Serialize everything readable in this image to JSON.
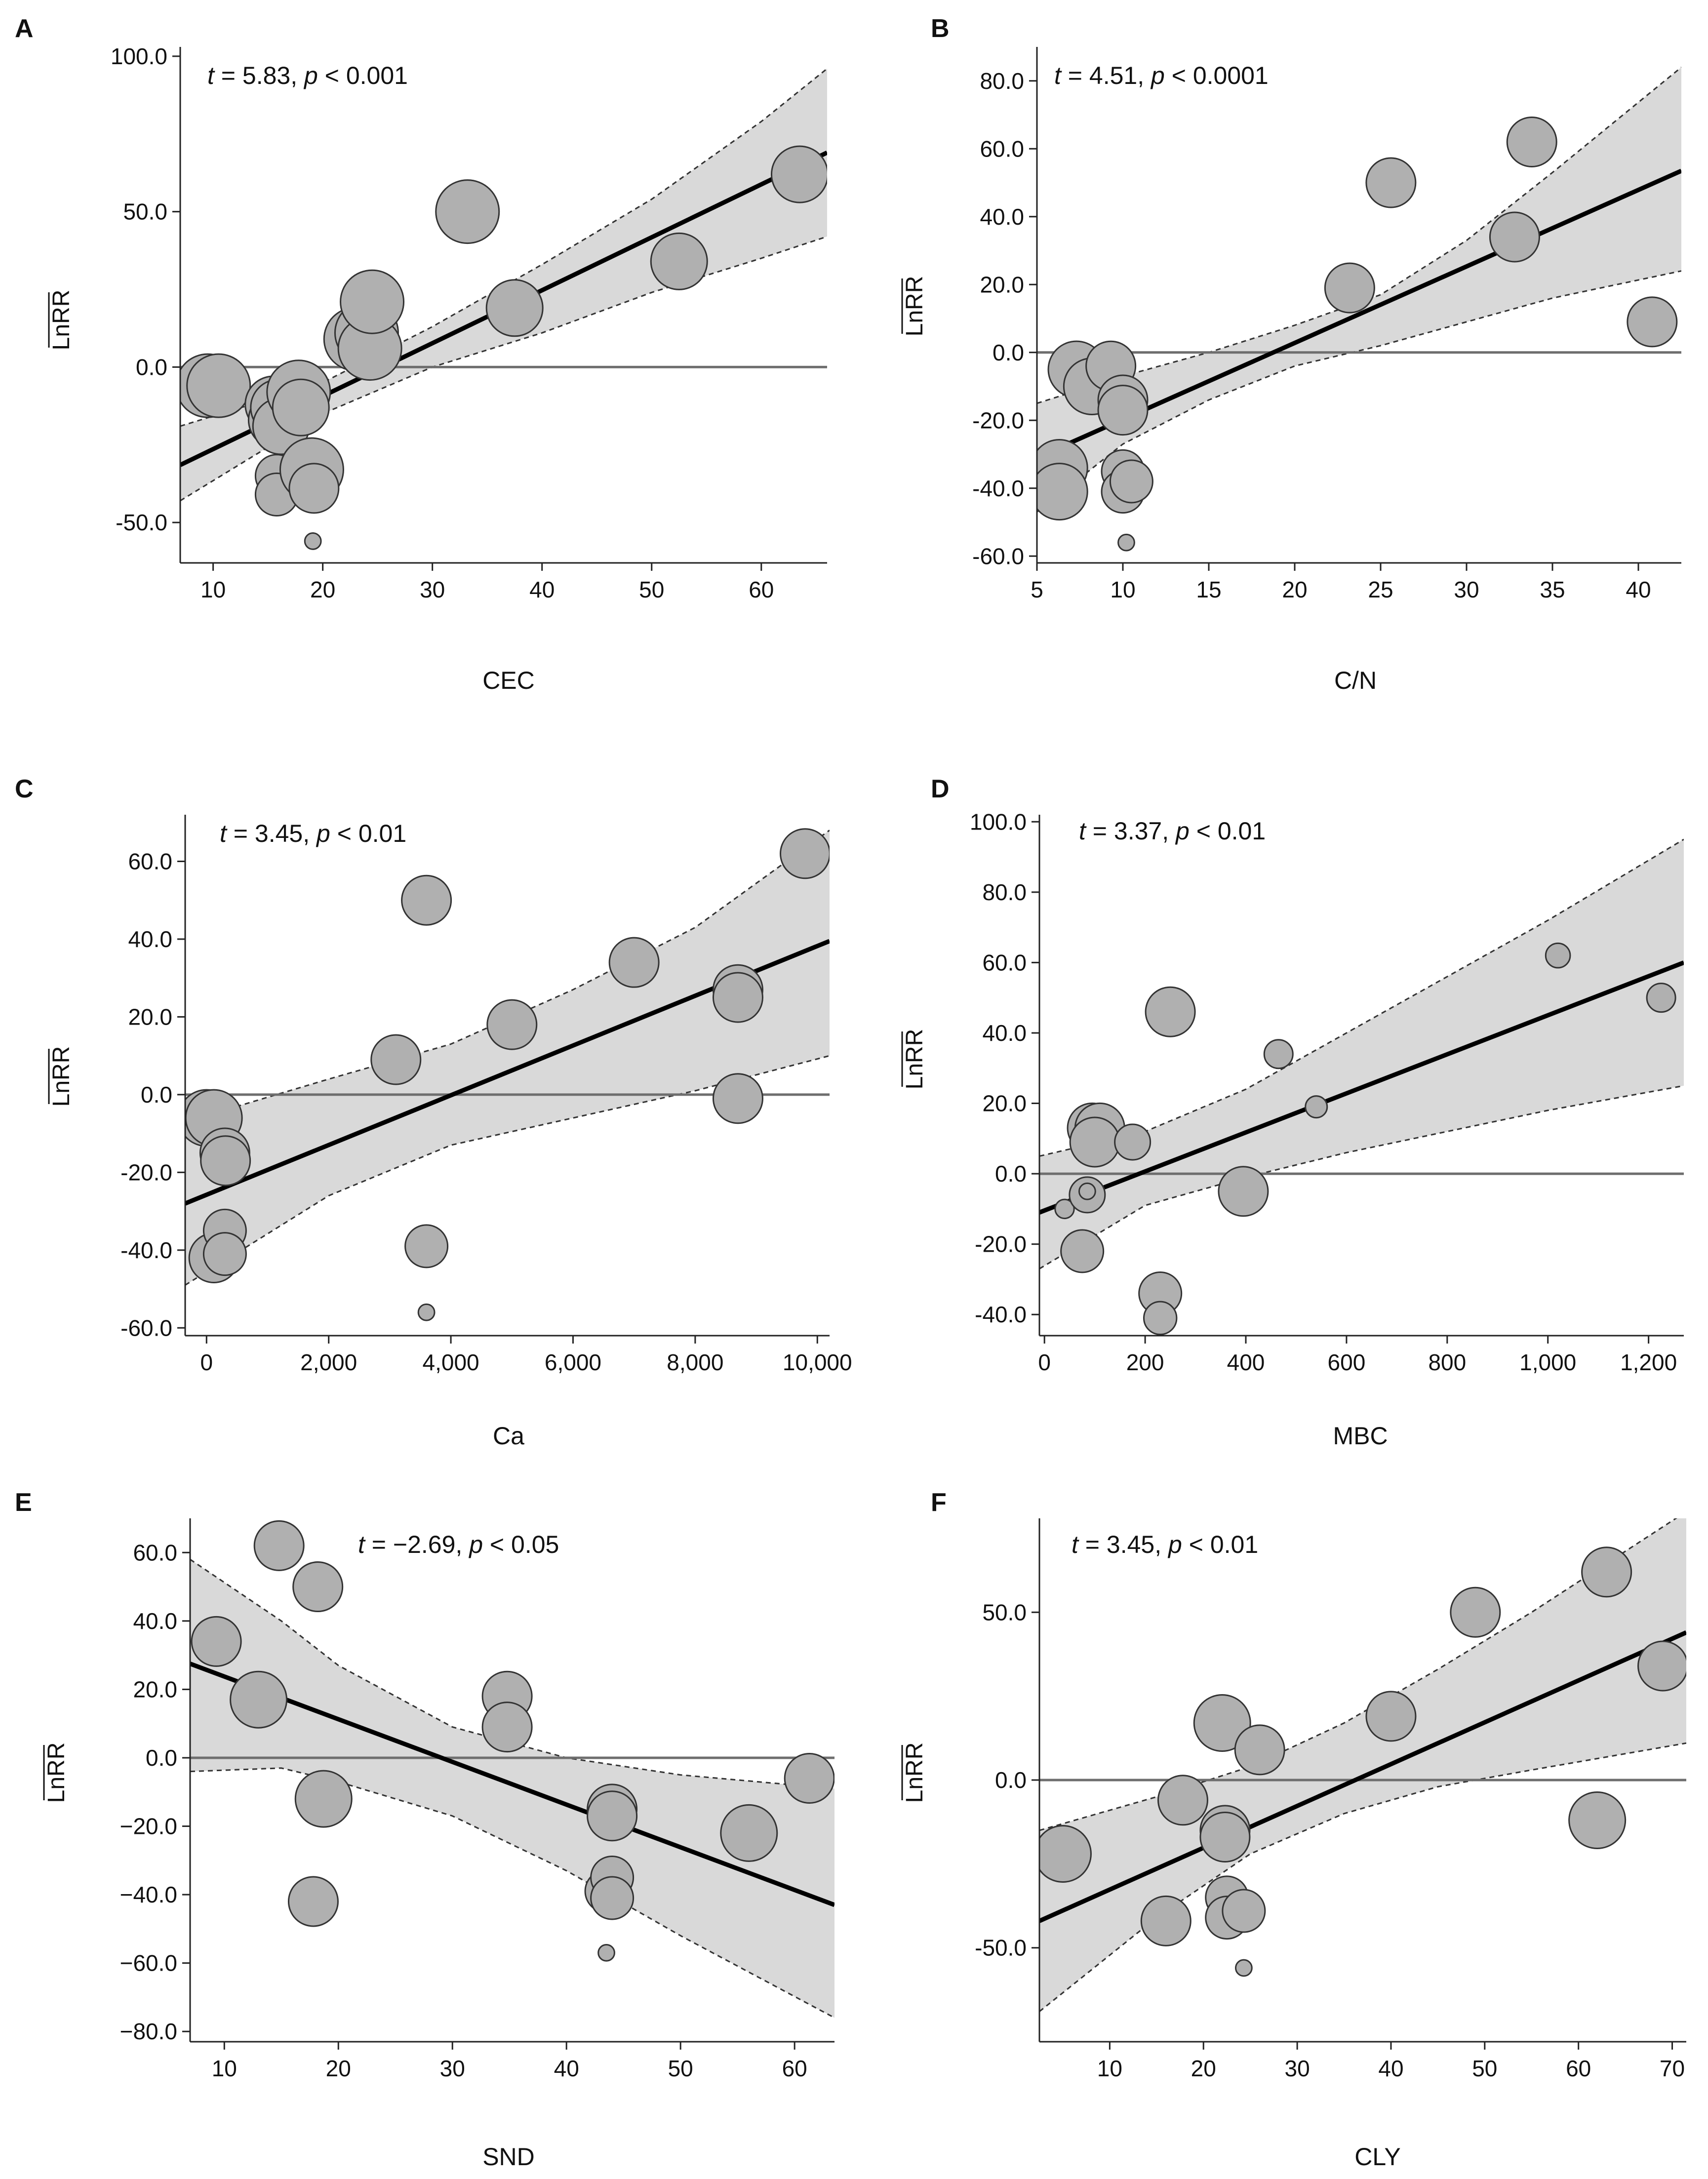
{
  "figure_title": "",
  "y_axis_label": "LnRR",
  "chart_data": [
    {
      "panel": "A",
      "type": "scatter",
      "stat": {
        "t_value": "5.83",
        "p_value": "0.001"
      },
      "xlabel": "CEC",
      "ylabel": "LnRR",
      "xlim": [
        7,
        66
      ],
      "ylim": [
        -63,
        103
      ],
      "x_ticks": [
        10,
        20,
        30,
        40,
        50,
        60
      ],
      "x_tick_labels": [
        "10",
        "20",
        "30",
        "40",
        "50",
        "60"
      ],
      "y_ticks": [
        -50,
        0,
        50,
        100
      ],
      "y_tick_labels": [
        "-50.0",
        "0.0",
        "50.0",
        "100.0"
      ],
      "fit": {
        "x": [
          7,
          66
        ],
        "y": [
          -31.5,
          69
        ]
      },
      "ci_upper": [
        [
          7,
          -19
        ],
        [
          20,
          -5
        ],
        [
          30,
          13
        ],
        [
          40,
          33
        ],
        [
          50,
          54
        ],
        [
          60,
          79
        ],
        [
          66,
          96
        ]
      ],
      "ci_lower": [
        [
          7,
          -43
        ],
        [
          20,
          -15
        ],
        [
          30,
          0
        ],
        [
          40,
          11
        ],
        [
          50,
          24
        ],
        [
          60,
          35
        ],
        [
          66,
          42
        ]
      ],
      "points": [
        {
          "x": 9.5,
          "y": -6,
          "size": 4
        },
        {
          "x": 10.5,
          "y": -6,
          "size": 4
        },
        {
          "x": 15.5,
          "y": -12,
          "size": 3.5
        },
        {
          "x": 15.8,
          "y": -17,
          "size": 3.5
        },
        {
          "x": 16,
          "y": -13,
          "size": 3.5
        },
        {
          "x": 16.2,
          "y": -19,
          "size": 3.5
        },
        {
          "x": 17.8,
          "y": -8,
          "size": 4
        },
        {
          "x": 18,
          "y": -13,
          "size": 3.5
        },
        {
          "x": 15.8,
          "y": -35,
          "size": 2.5
        },
        {
          "x": 15.8,
          "y": -41,
          "size": 2.5
        },
        {
          "x": 19,
          "y": -33,
          "size": 4
        },
        {
          "x": 19.2,
          "y": -39,
          "size": 3
        },
        {
          "x": 19.1,
          "y": -56,
          "size": 0.6
        },
        {
          "x": 23,
          "y": 9,
          "size": 4
        },
        {
          "x": 24,
          "y": 11,
          "size": 4
        },
        {
          "x": 24.3,
          "y": 6,
          "size": 4
        },
        {
          "x": 24.5,
          "y": 21,
          "size": 4
        },
        {
          "x": 33.2,
          "y": 50,
          "size": 4
        },
        {
          "x": 37.5,
          "y": 19,
          "size": 3.5
        },
        {
          "x": 52.5,
          "y": 34,
          "size": 3.5
        },
        {
          "x": 63.5,
          "y": 62,
          "size": 3.5
        }
      ]
    },
    {
      "panel": "B",
      "type": "scatter",
      "stat": {
        "t_value": "4.51",
        "p_value": "0.0001"
      },
      "xlabel": "C/N",
      "ylabel": "LnRR",
      "xlim": [
        5,
        42.5
      ],
      "ylim": [
        -62,
        90
      ],
      "x_ticks": [
        5,
        10,
        15,
        20,
        25,
        30,
        35,
        40
      ],
      "x_tick_labels": [
        "5",
        "10",
        "15",
        "20",
        "25",
        "30",
        "35",
        "40"
      ],
      "y_ticks": [
        -60,
        -40,
        -20,
        0,
        20,
        40,
        60,
        80
      ],
      "y_tick_labels": [
        "-60.0",
        "-40.0",
        "-20.0",
        "0.0",
        "20.0",
        "40.0",
        "60.0",
        "80.0"
      ],
      "fit": {
        "x": [
          5,
          42.5
        ],
        "y": [
          -31,
          53.5
        ]
      },
      "ci_upper": [
        [
          5,
          -15
        ],
        [
          10,
          -7
        ],
        [
          15,
          0
        ],
        [
          20,
          8
        ],
        [
          25,
          17
        ],
        [
          30,
          33
        ],
        [
          35,
          53
        ],
        [
          42.5,
          84
        ]
      ],
      "ci_lower": [
        [
          5,
          -47
        ],
        [
          10,
          -27
        ],
        [
          15,
          -14
        ],
        [
          20,
          -4
        ],
        [
          25,
          2
        ],
        [
          30,
          9
        ],
        [
          35,
          16
        ],
        [
          42.5,
          24
        ]
      ],
      "points": [
        {
          "x": 6.3,
          "y": -34,
          "size": 3.5
        },
        {
          "x": 6.3,
          "y": -41,
          "size": 3.5
        },
        {
          "x": 7.3,
          "y": -5,
          "size": 3.5
        },
        {
          "x": 8.2,
          "y": -10,
          "size": 3.5
        },
        {
          "x": 9.3,
          "y": -4,
          "size": 3
        },
        {
          "x": 10,
          "y": -14,
          "size": 3
        },
        {
          "x": 10,
          "y": -17,
          "size": 3
        },
        {
          "x": 10,
          "y": -35,
          "size": 2.5
        },
        {
          "x": 10,
          "y": -41,
          "size": 2.5
        },
        {
          "x": 10.5,
          "y": -38,
          "size": 2.5
        },
        {
          "x": 10.2,
          "y": -56,
          "size": 0.6
        },
        {
          "x": 23.2,
          "y": 19,
          "size": 3
        },
        {
          "x": 25.6,
          "y": 50,
          "size": 3
        },
        {
          "x": 32.8,
          "y": 34,
          "size": 3
        },
        {
          "x": 33.8,
          "y": 62,
          "size": 3
        },
        {
          "x": 40.8,
          "y": 9,
          "size": 3
        }
      ]
    },
    {
      "panel": "C",
      "type": "scatter",
      "stat": {
        "t_value": "3.45",
        "p_value": "0.01"
      },
      "xlabel": "Ca",
      "ylabel": "LnRR",
      "xlim": [
        -350,
        10200
      ],
      "ylim": [
        -62,
        72
      ],
      "x_ticks": [
        0,
        2000,
        4000,
        6000,
        8000,
        10000
      ],
      "x_tick_labels": [
        "0",
        "2,000",
        "4,000",
        "6,000",
        "8,000",
        "10,000"
      ],
      "y_ticks": [
        -60,
        -40,
        -20,
        0,
        20,
        40,
        60
      ],
      "y_tick_labels": [
        "-60.0",
        "-40.0",
        "-20.0",
        "0.0",
        "20.0",
        "40.0",
        "60.0"
      ],
      "fit": {
        "x": [
          -350,
          10200
        ],
        "y": [
          -28,
          39.5
        ]
      },
      "ci_upper": [
        [
          -350,
          -7
        ],
        [
          2000,
          4
        ],
        [
          4000,
          13
        ],
        [
          6000,
          27
        ],
        [
          8000,
          43
        ],
        [
          10200,
          68
        ]
      ],
      "ci_lower": [
        [
          -350,
          -49
        ],
        [
          2000,
          -26
        ],
        [
          4000,
          -13
        ],
        [
          6000,
          -6
        ],
        [
          8000,
          1
        ],
        [
          10200,
          10
        ]
      ],
      "points": [
        {
          "x": 0,
          "y": -6,
          "size": 3.5
        },
        {
          "x": 120,
          "y": -6,
          "size": 3.5
        },
        {
          "x": 120,
          "y": -42,
          "size": 3
        },
        {
          "x": 300,
          "y": -15,
          "size": 3
        },
        {
          "x": 310,
          "y": -17,
          "size": 3
        },
        {
          "x": 300,
          "y": -35,
          "size": 2.5
        },
        {
          "x": 300,
          "y": -41,
          "size": 2.5
        },
        {
          "x": 3100,
          "y": 9,
          "size": 3
        },
        {
          "x": 3600,
          "y": 50,
          "size": 3
        },
        {
          "x": 3600,
          "y": -39,
          "size": 2.5
        },
        {
          "x": 3600,
          "y": -56,
          "size": 0.6
        },
        {
          "x": 5000,
          "y": 18,
          "size": 3
        },
        {
          "x": 7000,
          "y": 34,
          "size": 3
        },
        {
          "x": 8700,
          "y": 27,
          "size": 3
        },
        {
          "x": 8700,
          "y": 25,
          "size": 3
        },
        {
          "x": 8700,
          "y": -1,
          "size": 3
        },
        {
          "x": 9800,
          "y": 62,
          "size": 3
        }
      ]
    },
    {
      "panel": "D",
      "type": "scatter",
      "stat": {
        "t_value": "3.37",
        "p_value": "0.01"
      },
      "xlabel": "MBC",
      "ylabel": "LnRR",
      "xlim": [
        -10,
        1270
      ],
      "ylim": [
        -46,
        102
      ],
      "x_ticks": [
        0,
        200,
        400,
        600,
        800,
        1000,
        1200
      ],
      "x_tick_labels": [
        "0",
        "200",
        "400",
        "600",
        "800",
        "1,000",
        "1,200"
      ],
      "y_ticks": [
        -40,
        -20,
        0,
        20,
        40,
        60,
        80,
        100
      ],
      "y_tick_labels": [
        "-40.0",
        "-20.0",
        "0.0",
        "20.0",
        "40.0",
        "60.0",
        "80.0",
        "100.0"
      ],
      "fit": {
        "x": [
          -10,
          1270
        ],
        "y": [
          -11,
          60
        ]
      },
      "ci_upper": [
        [
          -10,
          5
        ],
        [
          200,
          12
        ],
        [
          400,
          24
        ],
        [
          600,
          40
        ],
        [
          800,
          56
        ],
        [
          1000,
          72
        ],
        [
          1270,
          95
        ]
      ],
      "ci_lower": [
        [
          -10,
          -27
        ],
        [
          200,
          -9
        ],
        [
          400,
          -1
        ],
        [
          600,
          6
        ],
        [
          800,
          12
        ],
        [
          1000,
          18
        ],
        [
          1270,
          25
        ]
      ],
      "points": [
        {
          "x": 40,
          "y": -10,
          "size": 0.8
        },
        {
          "x": 75,
          "y": -22,
          "size": 2.5
        },
        {
          "x": 85,
          "y": -6,
          "size": 2
        },
        {
          "x": 85,
          "y": -5,
          "size": 0.6
        },
        {
          "x": 95,
          "y": 13,
          "size": 3
        },
        {
          "x": 110,
          "y": 13,
          "size": 3
        },
        {
          "x": 100,
          "y": 9,
          "size": 3
        },
        {
          "x": 175,
          "y": 9,
          "size": 2
        },
        {
          "x": 230,
          "y": -34,
          "size": 2.5
        },
        {
          "x": 230,
          "y": -41,
          "size": 1.8
        },
        {
          "x": 250,
          "y": 46,
          "size": 3
        },
        {
          "x": 395,
          "y": -5,
          "size": 3
        },
        {
          "x": 465,
          "y": 34,
          "size": 1.5
        },
        {
          "x": 540,
          "y": 19,
          "size": 1
        },
        {
          "x": 1020,
          "y": 62,
          "size": 1.2
        },
        {
          "x": 1225,
          "y": 50,
          "size": 1.5
        }
      ]
    },
    {
      "panel": "E",
      "type": "scatter",
      "stat": {
        "t_value": "−2.69",
        "p_value": "0.05"
      },
      "xlabel": "SND",
      "ylabel": "LnRR",
      "xlim": [
        7,
        63.5
      ],
      "ylim": [
        -83,
        70
      ],
      "x_ticks": [
        10,
        20,
        30,
        40,
        50,
        60
      ],
      "x_tick_labels": [
        "10",
        "20",
        "30",
        "40",
        "50",
        "60"
      ],
      "y_ticks": [
        -80,
        -60,
        -40,
        -20,
        0,
        20,
        40,
        60
      ],
      "y_tick_labels": [
        "−80.0",
        "−60.0",
        "−40.0",
        "−20.0",
        "0.0",
        "20.0",
        "40.0",
        "60.0"
      ],
      "fit": {
        "x": [
          7,
          63.5
        ],
        "y": [
          27.5,
          -43
        ]
      },
      "ci_upper": [
        [
          7,
          58
        ],
        [
          15,
          40
        ],
        [
          20,
          27
        ],
        [
          30,
          9
        ],
        [
          40,
          0
        ],
        [
          50,
          -5
        ],
        [
          63.5,
          -9
        ]
      ],
      "ci_lower": [
        [
          7,
          -4
        ],
        [
          15,
          -3
        ],
        [
          20,
          -7
        ],
        [
          30,
          -17
        ],
        [
          40,
          -33
        ],
        [
          50,
          -52
        ],
        [
          63.5,
          -76
        ]
      ],
      "points": [
        {
          "x": 9.3,
          "y": 34,
          "size": 3
        },
        {
          "x": 13,
          "y": 17,
          "size": 3.5
        },
        {
          "x": 14.8,
          "y": 62,
          "size": 3
        },
        {
          "x": 18.2,
          "y": 50,
          "size": 3
        },
        {
          "x": 17.8,
          "y": -42,
          "size": 3
        },
        {
          "x": 18.7,
          "y": -12,
          "size": 3.5
        },
        {
          "x": 34.8,
          "y": 18,
          "size": 3
        },
        {
          "x": 34.8,
          "y": 9,
          "size": 3
        },
        {
          "x": 43.5,
          "y": -39,
          "size": 2.5
        },
        {
          "x": 44,
          "y": -15,
          "size": 3
        },
        {
          "x": 44,
          "y": -17,
          "size": 3
        },
        {
          "x": 44,
          "y": -35,
          "size": 2.5
        },
        {
          "x": 44,
          "y": -41,
          "size": 2.5
        },
        {
          "x": 43.5,
          "y": -57,
          "size": 0.6
        },
        {
          "x": 56,
          "y": -22,
          "size": 3.5
        },
        {
          "x": 61.3,
          "y": -6,
          "size": 3
        }
      ]
    },
    {
      "panel": "F",
      "type": "scatter",
      "stat": {
        "t_value": "3.45",
        "p_value": "0.01"
      },
      "xlabel": "CLY",
      "ylabel": "LnRR",
      "xlim": [
        2.5,
        71.5
      ],
      "ylim": [
        -78,
        78
      ],
      "x_ticks": [
        10,
        20,
        30,
        40,
        50,
        60,
        70
      ],
      "x_tick_labels": [
        "10",
        "20",
        "30",
        "40",
        "50",
        "60",
        "70"
      ],
      "y_ticks": [
        -50,
        0,
        50
      ],
      "y_tick_labels": [
        "-50.0",
        "0.0",
        "50.0"
      ],
      "fit": {
        "x": [
          2.5,
          71.5
        ],
        "y": [
          -42,
          44
        ]
      },
      "ci_upper": [
        [
          2.5,
          -15
        ],
        [
          15,
          -5
        ],
        [
          25,
          4
        ],
        [
          35,
          17
        ],
        [
          45,
          33
        ],
        [
          55,
          50
        ],
        [
          71.5,
          80
        ]
      ],
      "ci_lower": [
        [
          2.5,
          -69
        ],
        [
          15,
          -41
        ],
        [
          25,
          -22
        ],
        [
          35,
          -10
        ],
        [
          45,
          -2
        ],
        [
          55,
          3
        ],
        [
          71.5,
          11
        ]
      ],
      "points": [
        {
          "x": 5,
          "y": -22,
          "size": 3.5
        },
        {
          "x": 16,
          "y": -42,
          "size": 3
        },
        {
          "x": 17.8,
          "y": -6,
          "size": 3
        },
        {
          "x": 22,
          "y": 17,
          "size": 3.5
        },
        {
          "x": 22.3,
          "y": -15,
          "size": 3
        },
        {
          "x": 22.3,
          "y": -17,
          "size": 3
        },
        {
          "x": 22.5,
          "y": -35,
          "size": 2.5
        },
        {
          "x": 22.5,
          "y": -41,
          "size": 2.5
        },
        {
          "x": 24.3,
          "y": -39,
          "size": 2.5
        },
        {
          "x": 24.3,
          "y": -56,
          "size": 0.6
        },
        {
          "x": 26,
          "y": 9,
          "size": 3
        },
        {
          "x": 40,
          "y": 19,
          "size": 3
        },
        {
          "x": 49,
          "y": 50,
          "size": 3
        },
        {
          "x": 62,
          "y": -12,
          "size": 3.5
        },
        {
          "x": 63,
          "y": 62,
          "size": 3
        },
        {
          "x": 69,
          "y": 34,
          "size": 3
        }
      ]
    }
  ],
  "colors": {
    "ci_fill": "#d9d9d9",
    "ci_border": "#333333",
    "fit_line": "#000000",
    "zero_line": "#6e6e6e",
    "point_fill": "#b0b0b0",
    "point_stroke": "#333333",
    "axis": "#222222"
  }
}
